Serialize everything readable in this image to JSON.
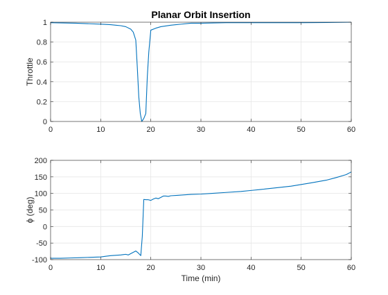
{
  "colors": {
    "line": "#0072BD",
    "grid": "#e6e6e6",
    "axis": "#262626",
    "background": "#ffffff"
  },
  "chart_data": [
    {
      "type": "line",
      "title": "Planar Orbit Insertion",
      "xlabel": "",
      "ylabel": "Throttle",
      "xlim": [
        0,
        60
      ],
      "ylim": [
        0,
        1
      ],
      "xticks": [
        0,
        10,
        20,
        30,
        40,
        50,
        60
      ],
      "yticks": [
        0,
        0.2,
        0.4,
        0.6,
        0.8,
        1
      ],
      "xtick_labels": [
        "0",
        "10",
        "20",
        "30",
        "40",
        "50",
        "60"
      ],
      "ytick_labels": [
        "0",
        "0.2",
        "0.4",
        "0.6",
        "0.8",
        "1"
      ],
      "grid": true,
      "series": [
        {
          "x": [
            0,
            5,
            10,
            12,
            13,
            14,
            15,
            16,
            16.5,
            17,
            17.3,
            17.6,
            17.9,
            18.2,
            18.6,
            19,
            19.3,
            19.6,
            20,
            21,
            22,
            24,
            26,
            28,
            30,
            35,
            40,
            45,
            50,
            55,
            60
          ],
          "y": [
            0.995,
            0.99,
            0.98,
            0.975,
            0.97,
            0.965,
            0.955,
            0.93,
            0.9,
            0.82,
            0.55,
            0.25,
            0.08,
            0.0,
            0.03,
            0.08,
            0.45,
            0.7,
            0.92,
            0.94,
            0.955,
            0.97,
            0.98,
            0.99,
            0.99,
            0.995,
            0.995,
            0.995,
            0.995,
            0.997,
            1.0
          ]
        }
      ]
    },
    {
      "type": "line",
      "title": "",
      "xlabel": "Time (min)",
      "ylabel": "ϕ (deg)",
      "xlim": [
        0,
        60
      ],
      "ylim": [
        -100,
        200
      ],
      "xticks": [
        0,
        10,
        20,
        30,
        40,
        50,
        60
      ],
      "yticks": [
        -100,
        -50,
        0,
        50,
        100,
        150,
        200
      ],
      "xtick_labels": [
        "0",
        "10",
        "20",
        "30",
        "40",
        "50",
        "60"
      ],
      "ytick_labels": [
        "-100",
        "-50",
        "0",
        "50",
        "100",
        "150",
        "200"
      ],
      "grid": true,
      "series": [
        {
          "x": [
            0,
            2,
            4,
            6,
            8,
            10,
            11,
            12,
            13,
            14,
            14.5,
            15,
            15.5,
            16,
            16.5,
            17,
            17.5,
            18,
            18.3,
            18.6,
            19,
            19.5,
            20,
            20.5,
            21,
            21.5,
            22,
            22.5,
            23,
            23.5,
            24,
            25,
            26,
            28,
            30,
            32,
            35,
            38,
            40,
            42,
            45,
            48,
            50,
            52,
            55,
            57,
            59,
            60
          ],
          "y": [
            -96,
            -96,
            -95,
            -94,
            -93,
            -92,
            -90,
            -88,
            -87,
            -86,
            -85,
            -84,
            -86,
            -82,
            -78,
            -74,
            -80,
            -88,
            -30,
            82,
            81,
            81,
            79,
            83,
            86,
            84,
            88,
            92,
            92,
            91,
            93,
            94,
            95,
            97,
            98,
            100,
            103,
            106,
            109,
            112,
            117,
            122,
            127,
            132,
            140,
            148,
            157,
            165
          ]
        }
      ]
    }
  ]
}
